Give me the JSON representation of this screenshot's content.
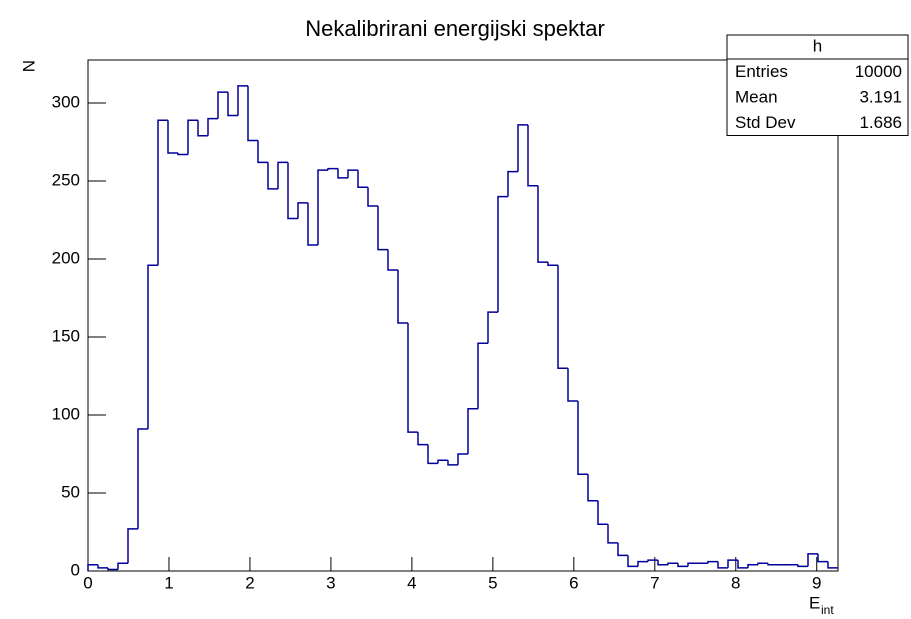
{
  "chart_data": {
    "type": "histogram",
    "title": "Nekalibrirani energijski spektar",
    "xlabel": {
      "text": "E",
      "sub": "int"
    },
    "ylabel": "N",
    "bins": [
      0,
      0.1235,
      0.247,
      0.3705,
      0.494,
      0.6175,
      0.741,
      0.8645,
      0.988,
      1.1115,
      1.235,
      1.3585,
      1.482,
      1.6055,
      1.729,
      1.8525,
      1.976,
      2.0995,
      2.223,
      2.3465,
      2.47,
      2.5935,
      2.717,
      2.8405,
      2.964,
      3.0875,
      3.211,
      3.3345,
      3.458,
      3.5815,
      3.705,
      3.8285,
      3.952,
      4.0755,
      4.199,
      4.3225,
      4.446,
      4.5695,
      4.693,
      4.8165,
      4.94,
      5.0635,
      5.187,
      5.3105,
      5.434,
      5.5575,
      5.681,
      5.8045,
      5.928,
      6.0515,
      6.175,
      6.2985,
      6.422,
      6.5455,
      6.669,
      6.7925,
      6.916,
      7.0395,
      7.163,
      7.2865,
      7.41,
      7.5335,
      7.657,
      7.7805,
      7.904,
      8.0275,
      8.151,
      8.2745,
      8.398,
      8.5215,
      8.645,
      8.7685,
      8.892,
      9.0155,
      9.139,
      9.2625
    ],
    "values": [
      4,
      2,
      1,
      5,
      27,
      91,
      196,
      289,
      268,
      267,
      289,
      279,
      290,
      307,
      292,
      311,
      276,
      262,
      245,
      262,
      226,
      236,
      209,
      257,
      258,
      252,
      257,
      246,
      234,
      206,
      193,
      159,
      89,
      81,
      69,
      71,
      68,
      75,
      104,
      146,
      166,
      240,
      256,
      286,
      247,
      198,
      196,
      130,
      109,
      62,
      45,
      30,
      18,
      10,
      3,
      6,
      7,
      4,
      5,
      3,
      5,
      5,
      6,
      2,
      7,
      2,
      4,
      5,
      4,
      4,
      4,
      3,
      11,
      6,
      2
    ],
    "color": "#000099",
    "xlim": [
      0,
      9.2625
    ],
    "xticks": [
      0,
      1,
      2,
      3,
      4,
      5,
      6,
      7,
      8,
      9
    ],
    "ylim": [
      0,
      327.6
    ],
    "yticks": [
      0,
      50,
      100,
      150,
      200,
      250,
      300
    ],
    "stats": {
      "title": "h",
      "rows": [
        {
          "label": "Entries",
          "value": 10000
        },
        {
          "label": "Mean",
          "value": 3.191
        },
        {
          "label": "Std Dev",
          "value": 1.686
        }
      ]
    }
  }
}
